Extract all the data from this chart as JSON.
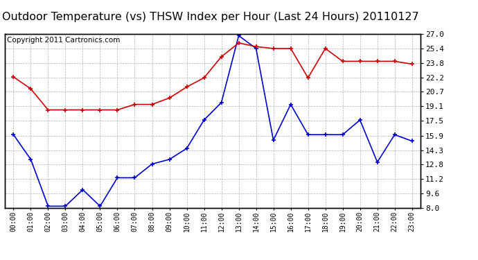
{
  "title": "Outdoor Temperature (vs) THSW Index per Hour (Last 24 Hours) 20110127",
  "copyright": "Copyright 2011 Cartronics.com",
  "hours": [
    "00:00",
    "01:00",
    "02:00",
    "03:00",
    "04:00",
    "05:00",
    "06:00",
    "07:00",
    "08:00",
    "09:00",
    "10:00",
    "11:00",
    "12:00",
    "13:00",
    "14:00",
    "15:00",
    "16:00",
    "17:00",
    "18:00",
    "19:00",
    "20:00",
    "21:00",
    "22:00",
    "23:00"
  ],
  "temp_blue": [
    16.0,
    13.3,
    8.2,
    8.2,
    10.0,
    8.2,
    11.3,
    11.3,
    12.8,
    13.3,
    14.5,
    17.6,
    19.5,
    26.8,
    25.4,
    15.4,
    19.3,
    16.0,
    16.0,
    16.0,
    17.6,
    13.0,
    16.0,
    15.3
  ],
  "thsw_red": [
    22.3,
    21.0,
    18.7,
    18.7,
    18.7,
    18.7,
    18.7,
    19.3,
    19.3,
    20.0,
    21.2,
    22.2,
    24.5,
    26.0,
    25.6,
    25.4,
    25.4,
    22.2,
    25.4,
    24.0,
    24.0,
    24.0,
    24.0,
    23.7
  ],
  "blue_color": "#0000cc",
  "red_color": "#cc0000",
  "bg_color": "#ffffff",
  "plot_bg": "#ffffff",
  "grid_color": "#aaaaaa",
  "ylim": [
    8.0,
    27.0
  ],
  "yticks": [
    8.0,
    9.6,
    11.2,
    12.8,
    14.3,
    15.9,
    17.5,
    19.1,
    20.7,
    22.2,
    23.8,
    25.4,
    27.0
  ],
  "title_fontsize": 11.5,
  "copyright_fontsize": 7.5
}
